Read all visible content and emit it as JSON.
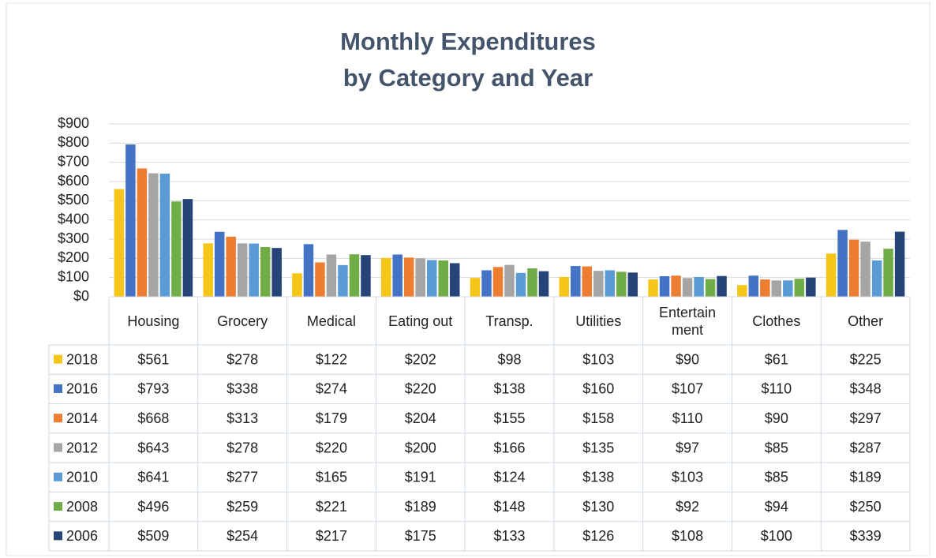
{
  "chart_data": {
    "type": "bar",
    "title": "Monthly Expenditures\nby Category and Year",
    "categories": [
      "Housing",
      "Grocery",
      "Medical",
      "Eating out",
      "Transp.",
      "Utilities",
      "Entertain\nment",
      "Clothes",
      "Other"
    ],
    "series": [
      {
        "name": "2018",
        "color": "#f5c518",
        "values": [
          561,
          278,
          122,
          202,
          98,
          103,
          90,
          61,
          225
        ],
        "value_labels": [
          "$561",
          "$278",
          "$122",
          "$202",
          "$98",
          "$103",
          "$90",
          "$61",
          "$225"
        ]
      },
      {
        "name": "2016",
        "color": "#4472c4",
        "values": [
          793,
          338,
          274,
          220,
          138,
          160,
          107,
          110,
          348
        ],
        "value_labels": [
          "$793",
          "$338",
          "$274",
          "$220",
          "$138",
          "$160",
          "$107",
          "$110",
          "$348"
        ]
      },
      {
        "name": "2014",
        "color": "#ed7d31",
        "values": [
          668,
          313,
          179,
          204,
          155,
          158,
          110,
          90,
          297
        ],
        "value_labels": [
          "$668",
          "$313",
          "$179",
          "$204",
          "$155",
          "$158",
          "$110",
          "$90",
          "$297"
        ]
      },
      {
        "name": "2012",
        "color": "#a5a5a5",
        "values": [
          643,
          278,
          220,
          200,
          166,
          135,
          97,
          85,
          287
        ],
        "value_labels": [
          "$643",
          "$278",
          "$220",
          "$200",
          "$166",
          "$135",
          "$97",
          "$85",
          "$287"
        ]
      },
      {
        "name": "2010",
        "color": "#5b9bd5",
        "values": [
          641,
          277,
          165,
          191,
          124,
          138,
          103,
          85,
          189
        ],
        "value_labels": [
          "$641",
          "$277",
          "$165",
          "$191",
          "$124",
          "$138",
          "$103",
          "$85",
          "$189"
        ]
      },
      {
        "name": "2008",
        "color": "#70ad47",
        "values": [
          496,
          259,
          221,
          189,
          148,
          130,
          92,
          94,
          250
        ],
        "value_labels": [
          "$496",
          "$259",
          "$221",
          "$189",
          "$148",
          "$130",
          "$92",
          "$94",
          "$250"
        ]
      },
      {
        "name": "2006",
        "color": "#264478",
        "values": [
          509,
          254,
          217,
          175,
          133,
          126,
          108,
          100,
          339
        ],
        "value_labels": [
          "$509",
          "$254",
          "$217",
          "$175",
          "$133",
          "$126",
          "$108",
          "$100",
          "$339"
        ]
      }
    ],
    "ylim": [
      0,
      900
    ],
    "yticks": [
      {
        "value": 0,
        "label": "$0"
      },
      {
        "value": 100,
        "label": "$100"
      },
      {
        "value": 200,
        "label": "$200"
      },
      {
        "value": 300,
        "label": "$300"
      },
      {
        "value": 400,
        "label": "$400"
      },
      {
        "value": 500,
        "label": "$500"
      },
      {
        "value": 600,
        "label": "$600"
      },
      {
        "value": 700,
        "label": "$700"
      },
      {
        "value": 800,
        "label": "$800"
      },
      {
        "value": 900,
        "label": "$900"
      }
    ],
    "grid": true
  }
}
